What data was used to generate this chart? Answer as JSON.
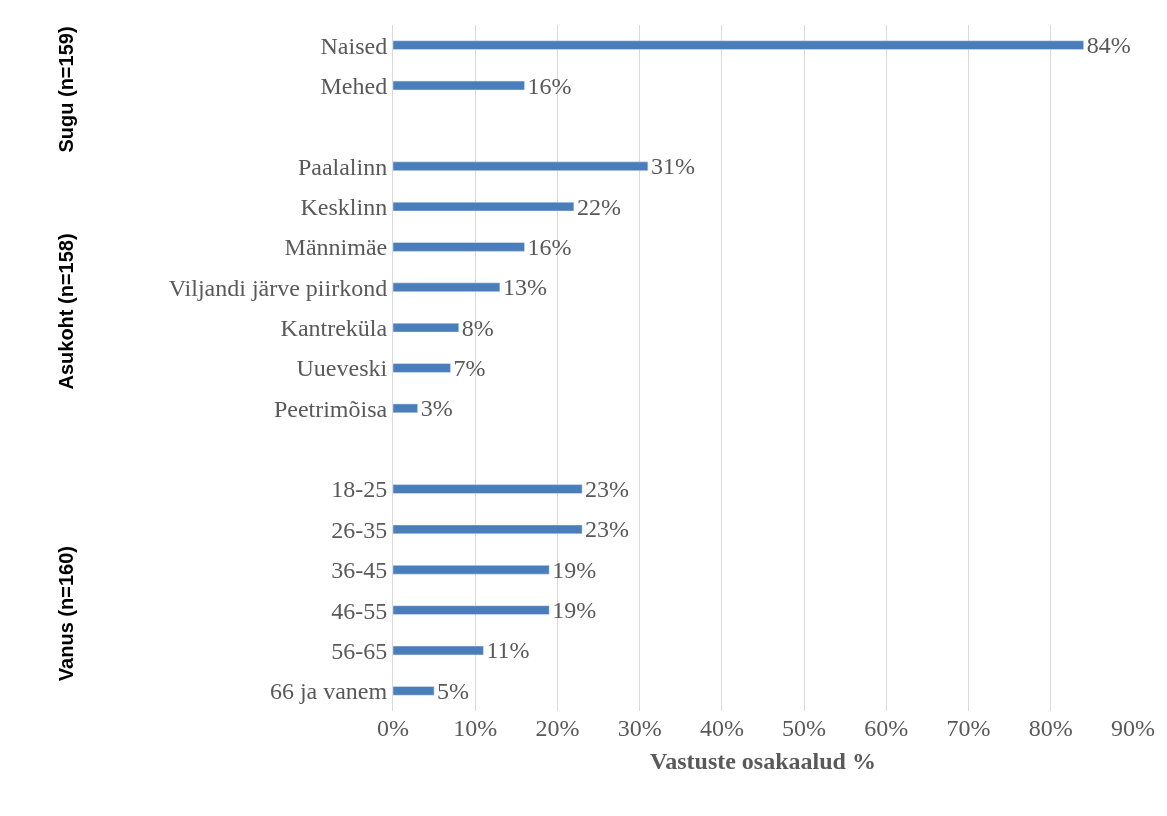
{
  "chart_data": {
    "type": "bar",
    "orientation": "horizontal",
    "xlabel": "Vastuste osakaalud %",
    "categories": [
      "Naised",
      "Mehed",
      null,
      "Paalalinn",
      "Kesklinn",
      "Männimäe",
      "Viljandi järve piirkond",
      "Kantreküla",
      "Uueveski",
      "Peetrimõisa",
      null,
      "18-25",
      "26-35",
      "36-45",
      "46-55",
      "56-65",
      "66 ja vanem"
    ],
    "values": [
      84,
      16,
      null,
      31,
      22,
      16,
      13,
      8,
      7,
      3,
      null,
      23,
      23,
      19,
      19,
      11,
      5
    ],
    "value_labels": [
      "84%",
      "16%",
      null,
      "31%",
      "22%",
      "16%",
      "13%",
      "8%",
      "7%",
      "3%",
      null,
      "23%",
      "23%",
      "19%",
      "19%",
      "11%",
      "5%"
    ],
    "color": "#4a7ebb",
    "xlim": [
      0,
      90
    ],
    "xticks": [
      {
        "value": 0,
        "label": "0%"
      },
      {
        "value": 10,
        "label": "10%"
      },
      {
        "value": 20,
        "label": "20%"
      },
      {
        "value": 30,
        "label": "30%"
      },
      {
        "value": 40,
        "label": "40%"
      },
      {
        "value": 50,
        "label": "50%"
      },
      {
        "value": 60,
        "label": "60%"
      },
      {
        "value": 70,
        "label": "70%"
      },
      {
        "value": 80,
        "label": "80%"
      },
      {
        "value": 90,
        "label": "90%"
      }
    ],
    "annotations": [
      "Sugu (n=159)",
      "Asukoht (n=158)",
      "Vanus (n=160)"
    ],
    "grid": "x",
    "legend": false
  }
}
